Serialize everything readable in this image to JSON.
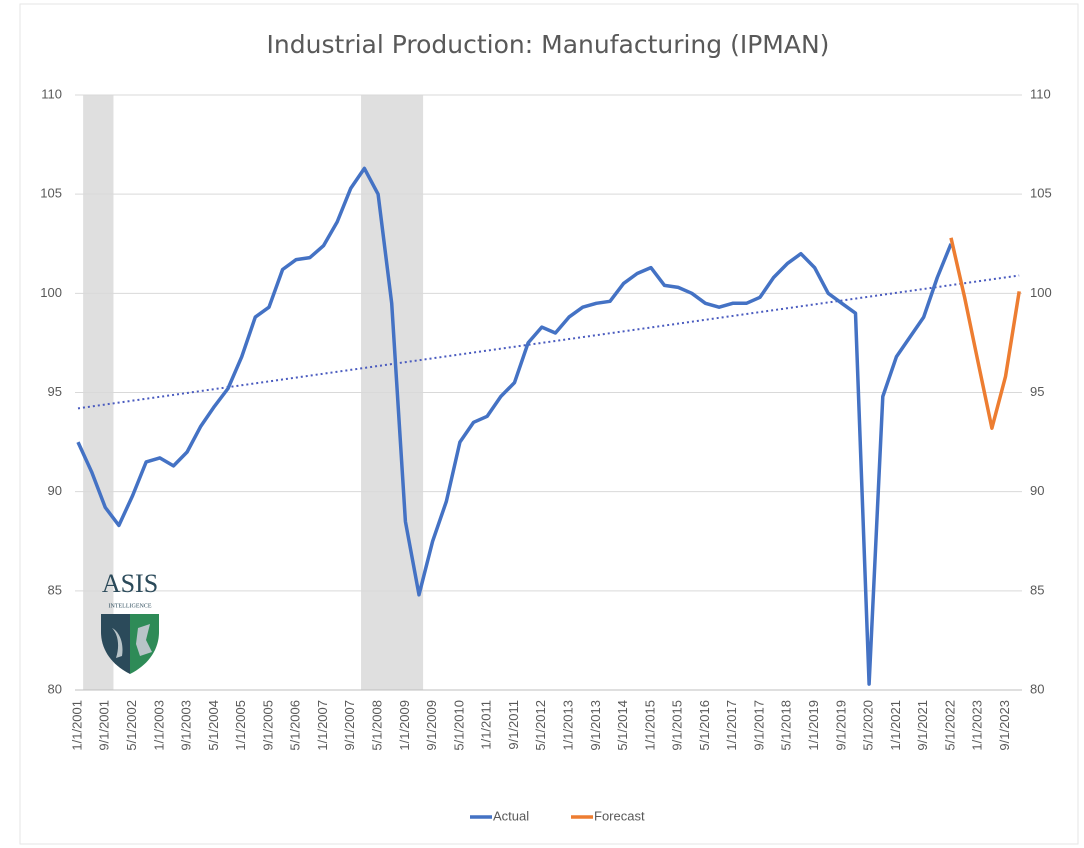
{
  "chart_data": {
    "type": "line",
    "title": "Industrial Production:   Manufacturing (IPMAN)",
    "categories": [
      "1/1/2001",
      null,
      "9/1/2001",
      null,
      "5/1/2002",
      null,
      "1/1/2003",
      null,
      "9/1/2003",
      null,
      "5/1/2004",
      null,
      "1/1/2005",
      null,
      "9/1/2005",
      null,
      "5/1/2006",
      null,
      "1/1/2007",
      null,
      "9/1/2007",
      null,
      "5/1/2008",
      null,
      "1/1/2009",
      null,
      "9/1/2009",
      null,
      "5/1/2010",
      null,
      "1/1/2011",
      null,
      "9/1/2011",
      null,
      "5/1/2012",
      null,
      "1/1/2013",
      null,
      "9/1/2013",
      null,
      "5/1/2014",
      null,
      "1/1/2015",
      null,
      "9/1/2015",
      null,
      "5/1/2016",
      null,
      "1/1/2017",
      null,
      "9/1/2017",
      null,
      "5/1/2018",
      null,
      "1/1/2019",
      null,
      "9/1/2019",
      null,
      "5/1/2020",
      null,
      "1/1/2021",
      null,
      "9/1/2021",
      null,
      "5/1/2022",
      null,
      "1/1/2023",
      null,
      "9/1/2023",
      null
    ],
    "series": [
      {
        "name": "Actual",
        "color": "#4472c4",
        "values": [
          92.5,
          91.0,
          89.2,
          88.3,
          89.8,
          91.5,
          91.7,
          91.3,
          92.0,
          93.3,
          94.3,
          95.2,
          96.8,
          98.8,
          99.3,
          101.2,
          101.7,
          101.8,
          102.4,
          103.6,
          105.3,
          106.3,
          105.0,
          99.5,
          88.5,
          84.8,
          87.5,
          89.5,
          92.5,
          93.5,
          93.8,
          94.8,
          95.5,
          97.5,
          98.3,
          98.0,
          98.8,
          99.3,
          99.5,
          99.6,
          100.5,
          101.0,
          101.3,
          100.4,
          100.3,
          100.0,
          99.5,
          99.3,
          99.5,
          99.5,
          99.8,
          100.8,
          101.5,
          102.0,
          101.3,
          100.0,
          99.5,
          99.0,
          80.3,
          94.8,
          96.8,
          97.8,
          98.8,
          100.8,
          102.5,
          null,
          null,
          null,
          null,
          null
        ]
      },
      {
        "name": "Forecast",
        "color": "#ed7d31",
        "values": [
          null,
          null,
          null,
          null,
          null,
          null,
          null,
          null,
          null,
          null,
          null,
          null,
          null,
          null,
          null,
          null,
          null,
          null,
          null,
          null,
          null,
          null,
          null,
          null,
          null,
          null,
          null,
          null,
          null,
          null,
          null,
          null,
          null,
          null,
          null,
          null,
          null,
          null,
          null,
          null,
          null,
          null,
          null,
          null,
          null,
          null,
          null,
          null,
          null,
          null,
          null,
          null,
          null,
          null,
          null,
          null,
          null,
          null,
          null,
          null,
          null,
          null,
          null,
          null,
          102.8,
          99.8,
          96.5,
          93.2,
          95.8,
          100.1
        ]
      }
    ],
    "trend": {
      "color": "#4a5bbf",
      "values": [
        94.2,
        100.9
      ]
    },
    "shading": [
      [
        0.375,
        2.6
      ],
      [
        20.75,
        25.3
      ]
    ],
    "ylim": [
      80,
      110
    ],
    "yticks": [
      80,
      85,
      90,
      95,
      100,
      105,
      110
    ],
    "y2lim": [
      80,
      110
    ],
    "y2ticks": [
      80,
      85,
      90,
      95,
      100,
      105,
      110
    ],
    "grid": true,
    "legend": "bottom"
  },
  "logo": {
    "name": "ASIS",
    "tagline": "INTELLIGENCE"
  }
}
